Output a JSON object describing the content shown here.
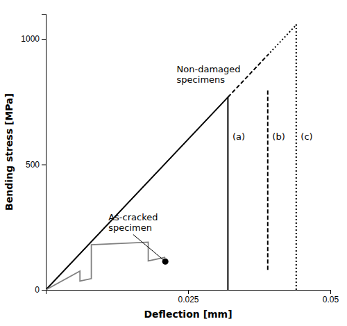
{
  "chart_data": {
    "type": "line",
    "xlabel": "Deflection [mm]",
    "ylabel": "Bending stress [MPa]",
    "xlim": [
      0,
      0.05
    ],
    "ylim": [
      0,
      1100
    ],
    "xticks": [
      {
        "value": 0,
        "label": null
      },
      0.025,
      0.05
    ],
    "yticks": [
      0,
      500,
      1000
    ],
    "grid": false,
    "series": [
      {
        "x": [
          0,
          0.032
        ],
        "values": [
          0,
          768
        ],
        "color": "black",
        "line_style": "solid"
      },
      {
        "x": [
          0.032,
          0.039
        ],
        "values": [
          768,
          936
        ],
        "color": "black",
        "line_style": "dashed"
      },
      {
        "x": [
          0.039,
          0.044
        ],
        "values": [
          936,
          1056
        ],
        "color": "black",
        "line_style": "dotted"
      },
      {
        "x": [
          0.044,
          0.044
        ],
        "values": [
          0,
          1060
        ],
        "color": "black",
        "line_style": "dotted"
      },
      {
        "x": [
          0,
          0.006,
          0.006,
          0.008,
          0.008,
          0.018,
          0.018,
          0.021
        ],
        "values": [
          0,
          75,
          35,
          45,
          180,
          190,
          115,
          130
        ],
        "color": "gray",
        "line_style": "solid"
      },
      {
        "type": "scatter",
        "x": [
          0.021
        ],
        "values": [
          113
        ],
        "color": "black",
        "marker": "circle"
      },
      {
        "x": [
          0.032,
          0.032
        ],
        "values": [
          0,
          770
        ],
        "color": "black",
        "line_style": "solid"
      },
      {
        "x": [
          0.039,
          0.039
        ],
        "values": [
          80,
          800
        ],
        "color": "black",
        "line_style": "dashed"
      }
    ],
    "annotations": [
      {
        "text": "(a)",
        "x": 0.0328,
        "y": 630
      },
      {
        "text": "(b)",
        "x": 0.0398,
        "y": 630
      },
      {
        "text": "(c)",
        "x": 0.0448,
        "y": 630
      },
      {
        "text": "Non-damaged\nspecimens",
        "x": 0.023,
        "y": 900
      },
      {
        "text": "As-cracked\nspecimen",
        "x": 0.011,
        "y": 310,
        "arrow_x": 0.021,
        "arrow_y": 113
      }
    ]
  }
}
